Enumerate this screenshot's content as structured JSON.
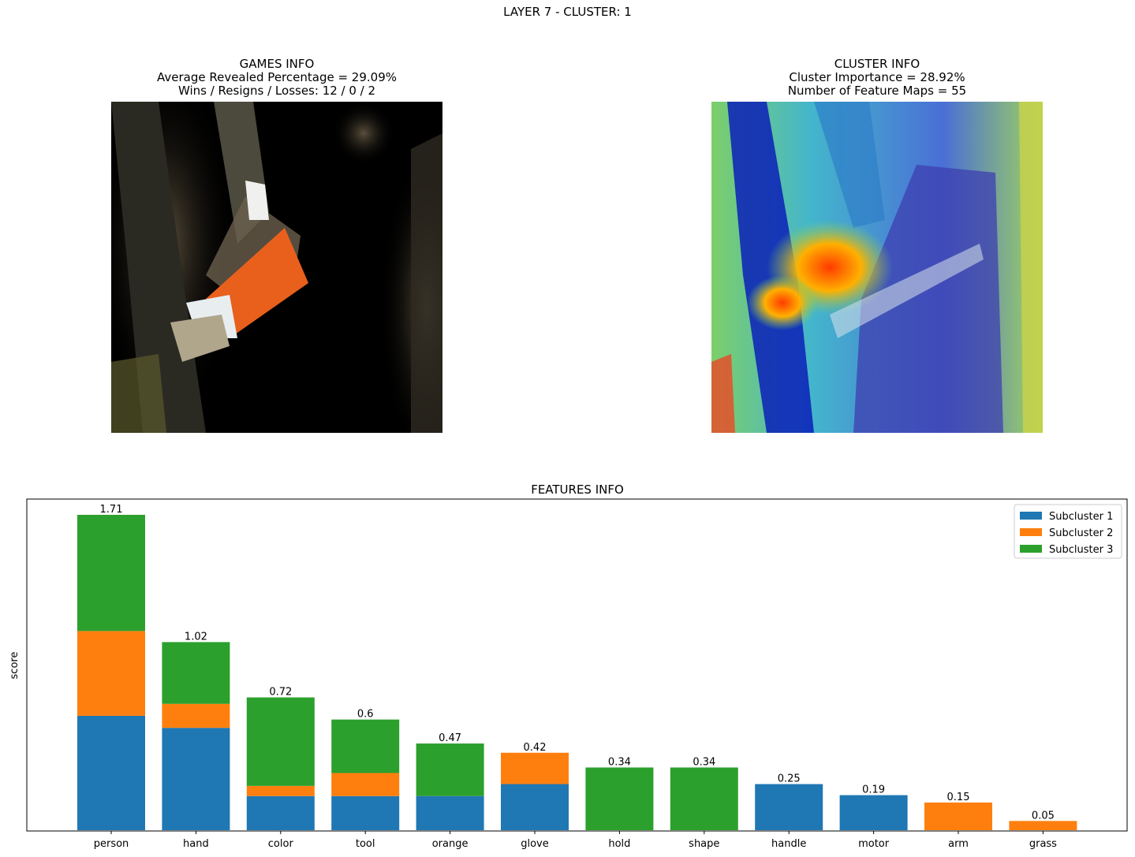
{
  "suptitle": "LAYER 7 - CLUSTER: 1",
  "games_info": {
    "title": "GAMES INFO",
    "line1": "Average Revealed Percentage = 29.09%",
    "line2": "Wins / Resigns / Losses: 12 / 0 / 2"
  },
  "cluster_info": {
    "title": "CLUSTER INFO",
    "line1": "Cluster Importance = 28.92%",
    "line2": "Number of Feature Maps = 55"
  },
  "chart_data": {
    "type": "bar",
    "stacked": true,
    "title": "FEATURES INFO",
    "xlabel": "",
    "ylabel": "score",
    "ylim": [
      0,
      1.71
    ],
    "categories": [
      "person",
      "hand",
      "color",
      "tool",
      "orange",
      "glove",
      "hold",
      "shape",
      "handle",
      "motor",
      "arm",
      "grass"
    ],
    "totals": [
      "1.71",
      "1.02",
      "0.72",
      "0.6",
      "0.47",
      "0.42",
      "0.34",
      "0.34",
      "0.25",
      "0.19",
      "0.15",
      "0.05"
    ],
    "series": [
      {
        "name": "Subcluster 1",
        "color": "#1f77b4",
        "values": [
          0.62,
          0.555,
          0.185,
          0.185,
          0.185,
          0.25,
          0,
          0,
          0.25,
          0.19,
          0,
          0
        ]
      },
      {
        "name": "Subcluster 2",
        "color": "#ff7f0e",
        "values": [
          0.46,
          0.13,
          0.055,
          0.125,
          0,
          0.17,
          0,
          0,
          0,
          0,
          0.15,
          0.05
        ]
      },
      {
        "name": "Subcluster 3",
        "color": "#2ca02c",
        "values": [
          0.63,
          0.335,
          0.48,
          0.29,
          0.285,
          0,
          0.34,
          0.34,
          0,
          0,
          0,
          0
        ]
      }
    ],
    "legend_position": "upper right",
    "grid": false
  }
}
